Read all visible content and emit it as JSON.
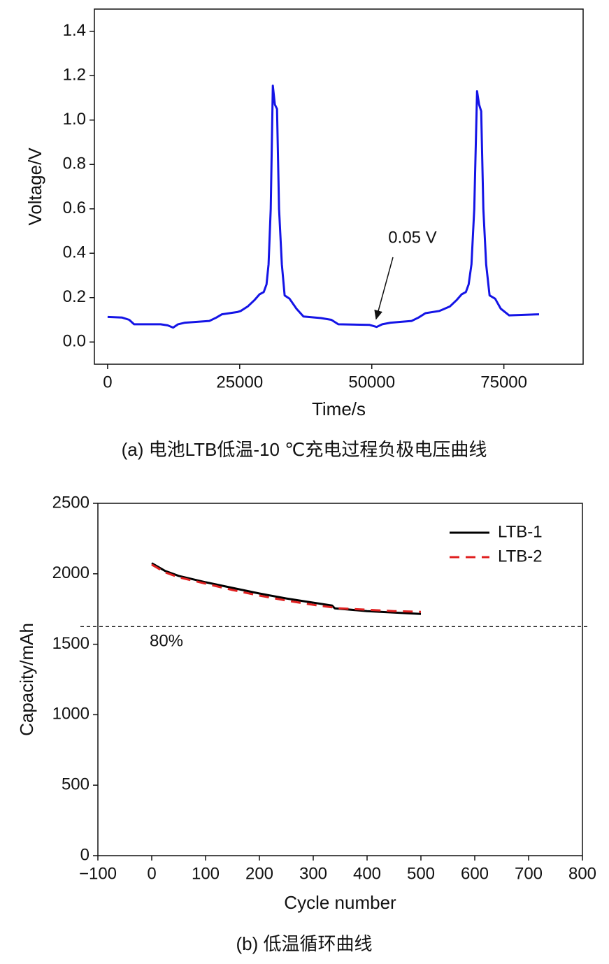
{
  "chart_data": [
    {
      "type": "line",
      "x_label": "Time/s",
      "y_label": "Voltage/V",
      "caption": "(a) 电池LTB低温-10 ℃充电过程负极电压曲线",
      "annotation": "0.05 V",
      "color": "#1414e6",
      "xlim": [
        -2500,
        90000
      ],
      "ylim": [
        -0.1,
        1.5
      ],
      "xticks": [
        0,
        25000,
        50000,
        75000
      ],
      "yticks": [
        {
          "value": 0,
          "label": "0.0"
        },
        0.2,
        0.4,
        0.6,
        0.8,
        {
          "value": 1,
          "label": "1.0"
        },
        1.2,
        1.4
      ],
      "x": [
        0,
        2770,
        4090,
        5010,
        10030,
        11350,
        12400,
        13325,
        14640,
        19260,
        20580,
        21640,
        24540,
        25200,
        26520,
        27840,
        28760,
        29550,
        30080,
        30470,
        30870,
        31270,
        31660,
        32060,
        32450,
        32980,
        33510,
        34430,
        35750,
        37070,
        40370,
        42350,
        43670,
        49600,
        50920,
        51980,
        53560,
        57520,
        58840,
        60160,
        62800,
        64780,
        66100,
        67020,
        67810,
        68340,
        68870,
        69390,
        69920,
        70310,
        70710,
        71110,
        71640,
        72300,
        73350,
        74410,
        75990,
        81660
      ],
      "values": [
        0.113,
        0.11,
        0.1,
        0.08,
        0.08,
        0.075,
        0.065,
        0.08,
        0.087,
        0.095,
        0.11,
        0.125,
        0.135,
        0.14,
        0.16,
        0.19,
        0.215,
        0.225,
        0.26,
        0.35,
        0.6,
        1.155,
        1.07,
        1.05,
        0.6,
        0.35,
        0.21,
        0.195,
        0.15,
        0.115,
        0.108,
        0.1,
        0.08,
        0.077,
        0.068,
        0.08,
        0.087,
        0.095,
        0.11,
        0.13,
        0.14,
        0.16,
        0.19,
        0.215,
        0.225,
        0.26,
        0.35,
        0.6,
        1.13,
        1.07,
        1.04,
        0.6,
        0.35,
        0.21,
        0.195,
        0.15,
        0.12,
        0.125
      ]
    },
    {
      "type": "line",
      "x_label": "Cycle number",
      "y_label": "Capacity/mAh",
      "caption": "(b) 低温循环曲线",
      "annotation": "80%",
      "hline": 1625,
      "legend": "upper right",
      "xlim": [
        -100,
        800
      ],
      "ylim": [
        0,
        2500
      ],
      "xticks": [
        {
          "value": -100,
          "label": "−100"
        },
        0,
        100,
        200,
        300,
        400,
        500,
        600,
        700,
        800
      ],
      "yticks": [
        0,
        500,
        1000,
        1500,
        2000,
        2500
      ],
      "x": [
        0,
        25,
        50,
        100,
        150,
        200,
        250,
        300,
        335,
        340,
        400,
        450,
        500
      ],
      "series": [
        {
          "name": "LTB-1",
          "color": "#000000",
          "values": [
            2075,
            2020,
            1985,
            1940,
            1900,
            1860,
            1825,
            1795,
            1775,
            1755,
            1735,
            1725,
            1715
          ]
        },
        {
          "name": "LTB-2",
          "color": "#e02020",
          "values": [
            2065,
            2010,
            1975,
            1930,
            1885,
            1845,
            1810,
            1780,
            1762,
            1757,
            1745,
            1735,
            1730
          ]
        }
      ]
    }
  ]
}
